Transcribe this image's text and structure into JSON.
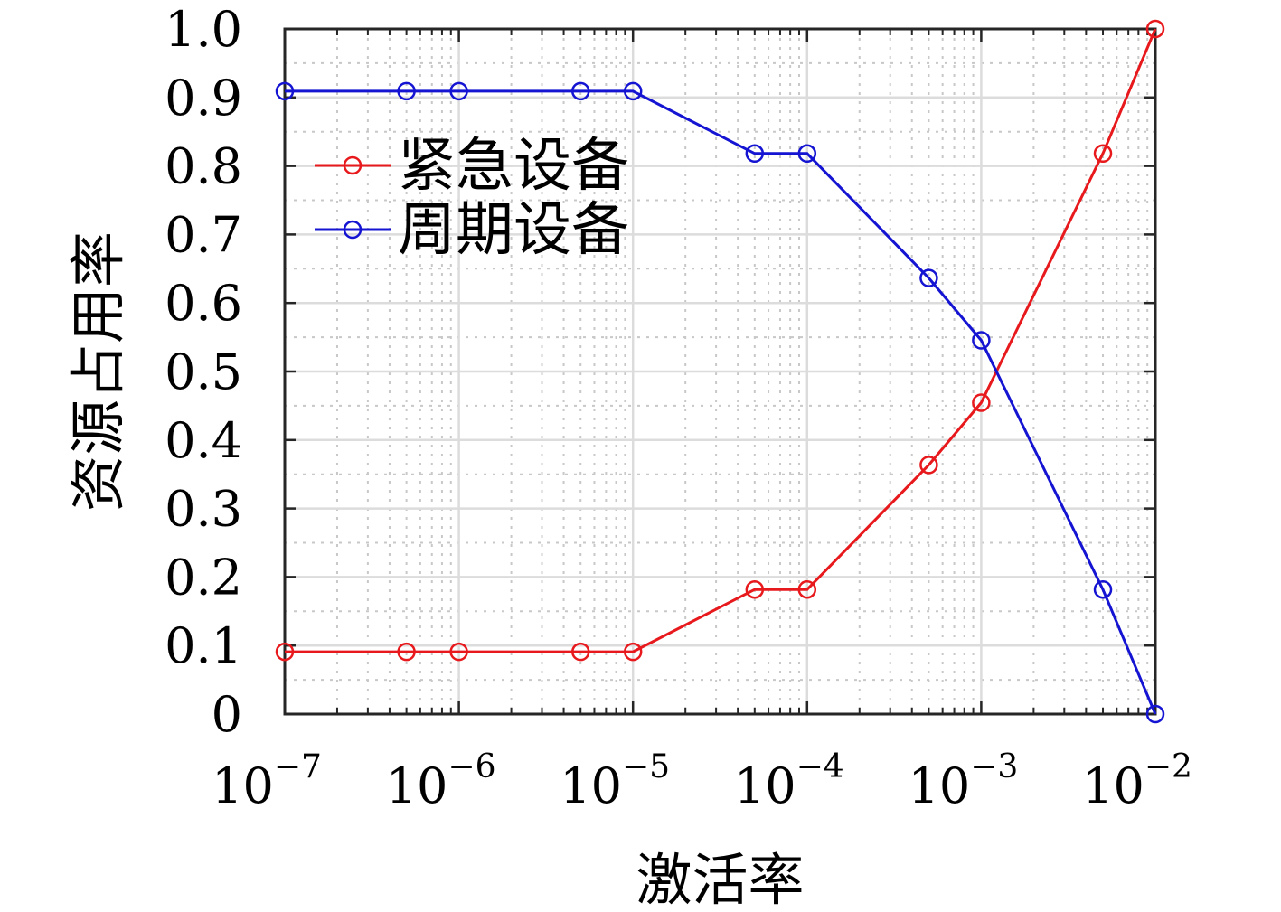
{
  "chart_data": {
    "type": "line",
    "x_scale": "log",
    "x": [
      1e-07,
      5e-07,
      1e-06,
      5e-06,
      1e-05,
      5e-05,
      0.0001,
      0.0005,
      0.001,
      0.005,
      0.01
    ],
    "series": [
      {
        "name": "紧急设备",
        "color": "#e8191c",
        "values": [
          0.0909,
          0.0909,
          0.0909,
          0.0909,
          0.0909,
          0.1818,
          0.1818,
          0.3636,
          0.4545,
          0.8182,
          1.0
        ]
      },
      {
        "name": "周期设备",
        "color": "#1414d2",
        "values": [
          0.9091,
          0.9091,
          0.9091,
          0.9091,
          0.9091,
          0.8182,
          0.8182,
          0.6364,
          0.5455,
          0.1818,
          0.0
        ]
      }
    ],
    "xlabel": "激活率",
    "ylabel": "资源占用率",
    "xlim": [
      1e-07,
      0.01
    ],
    "ylim": [
      0,
      1
    ],
    "x_ticks": [
      {
        "base": "10",
        "exp": "−7"
      },
      {
        "base": "10",
        "exp": "−6"
      },
      {
        "base": "10",
        "exp": "−5"
      },
      {
        "base": "10",
        "exp": "−4"
      },
      {
        "base": "10",
        "exp": "−3"
      },
      {
        "base": "10",
        "exp": "−2"
      }
    ],
    "y_ticks": [
      "0",
      "0.1",
      "0.2",
      "0.3",
      "0.4",
      "0.5",
      "0.6",
      "0.7",
      "0.8",
      "0.9",
      "1.0"
    ],
    "grid": true,
    "minor_grid": true,
    "legend_position": "upper-left"
  }
}
